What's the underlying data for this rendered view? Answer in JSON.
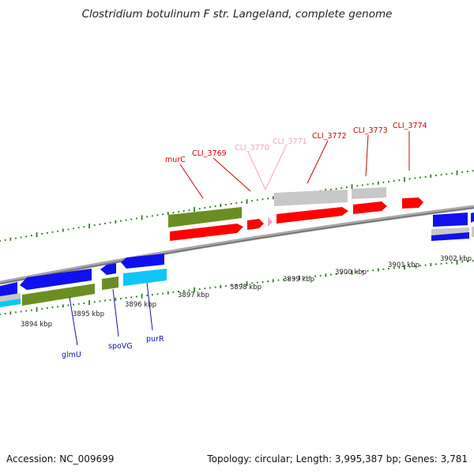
{
  "title": "Clostridium botulinum F str. Langeland, complete genome",
  "footer": {
    "accession": "Accession: NC_009699",
    "summary": "Topology: circular; Length: 3,995,387 bp; Genes: 3,781"
  },
  "colors": {
    "backbone": "#8c8c8c",
    "ticks": "#2e7d1e",
    "red": "#ff0000",
    "pink": "#ffa0c8",
    "grey": "#c8c8c8",
    "blue": "#1010ee",
    "olive": "#6b8e23",
    "cyan": "#11c5f7",
    "top_label": "#d40000",
    "top_label_faded": "#f5a3be",
    "bottom_label": "#1010b0"
  },
  "scale_labels": [
    "3894 kbp",
    "3895 kbp",
    "3896 kbp",
    "3897 kbp",
    "3898 kbp",
    "3899 kbp",
    "3900 kbp",
    "3901 kbp",
    "3902 kbp"
  ],
  "top_labels": [
    "murC",
    "CLI_3769",
    "CLI_3770",
    "CLI_3771",
    "CLI_3772",
    "CLI_3773",
    "CLI_3774"
  ],
  "bottom_labels": [
    "glmU",
    "spoVG",
    "purR"
  ]
}
